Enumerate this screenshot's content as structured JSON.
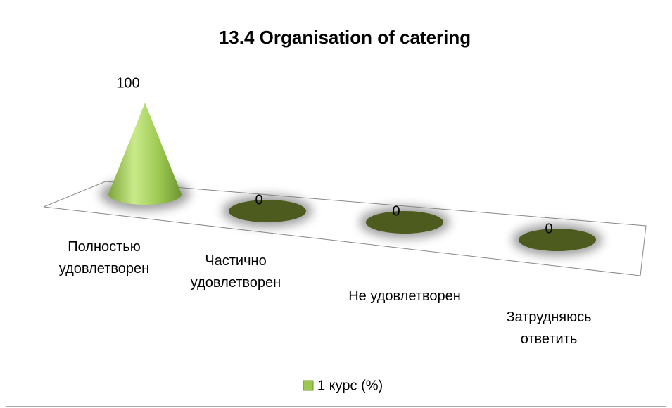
{
  "chart_data": {
    "type": "cone",
    "title": "13.4 Organisation of catering",
    "categories": [
      "Полностью удовлетворен",
      "Частично удовлетворен",
      "Не удовлетворен",
      "Затрудняюсь ответить"
    ],
    "series": [
      {
        "name": "1 курс (%)",
        "color": "#9bc850",
        "values": [
          100,
          0,
          0,
          0
        ]
      }
    ],
    "legend": "bottom"
  }
}
